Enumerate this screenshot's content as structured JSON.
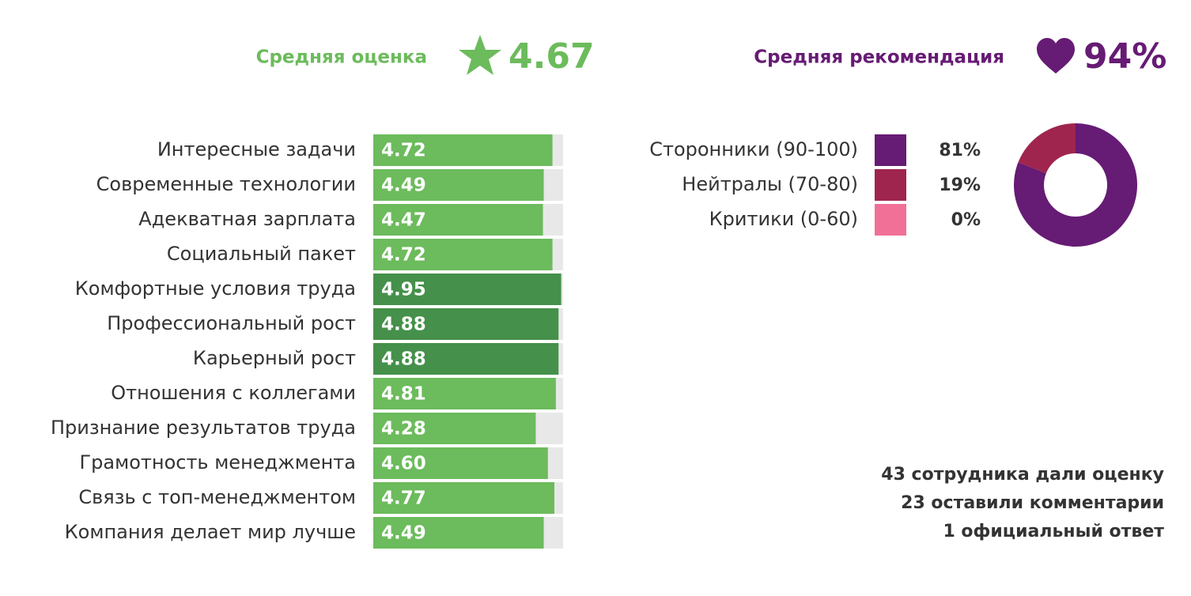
{
  "header": {
    "rating_label": "Средняя оценка",
    "rating": "4.67",
    "recommend_label": "Средняя рекомендация",
    "recommend": "94%"
  },
  "chart_data": [
    {
      "type": "bar",
      "orientation": "horizontal",
      "categories": [
        "Интересные задачи",
        "Современные технологии",
        "Адекватная зарплата",
        "Социальный пакет",
        "Комфортные условия труда",
        "Профессиональный рост",
        "Карьерный рост",
        "Отношения с коллегами",
        "Признание результатов труда",
        "Грамотность менеджмента",
        "Связь с топ-менеджментом",
        "Компания делает мир лучше"
      ],
      "values": [
        4.72,
        4.49,
        4.47,
        4.72,
        4.95,
        4.88,
        4.88,
        4.81,
        4.28,
        4.6,
        4.77,
        4.49
      ],
      "value_labels": [
        "4.72",
        "4.49",
        "4.47",
        "4.72",
        "4.95",
        "4.88",
        "4.88",
        "4.81",
        "4.28",
        "4.60",
        "4.77",
        "4.49"
      ],
      "colors": [
        "#6cbb5c",
        "#6cbb5c",
        "#6cbb5c",
        "#6cbb5c",
        "#45904a",
        "#45904a",
        "#45904a",
        "#6cbb5c",
        "#6cbb5c",
        "#6cbb5c",
        "#6cbb5c",
        "#6cbb5c"
      ],
      "track_color": "#e8e8e8",
      "xlim": [
        0,
        5
      ]
    },
    {
      "type": "pie",
      "donut": true,
      "categories": [
        "Сторонники (90-100)",
        "Нейтралы (70-80)",
        "Критики (0-60)"
      ],
      "values": [
        81,
        19,
        0
      ],
      "value_labels": [
        "81%",
        "19%",
        "0%"
      ],
      "colors": [
        "#661b74",
        "#a0254e",
        "#f07098"
      ]
    }
  ],
  "footer": [
    "43 сотрудника дали оценку",
    "23 оставили комментарии",
    "1 официальный ответ"
  ]
}
